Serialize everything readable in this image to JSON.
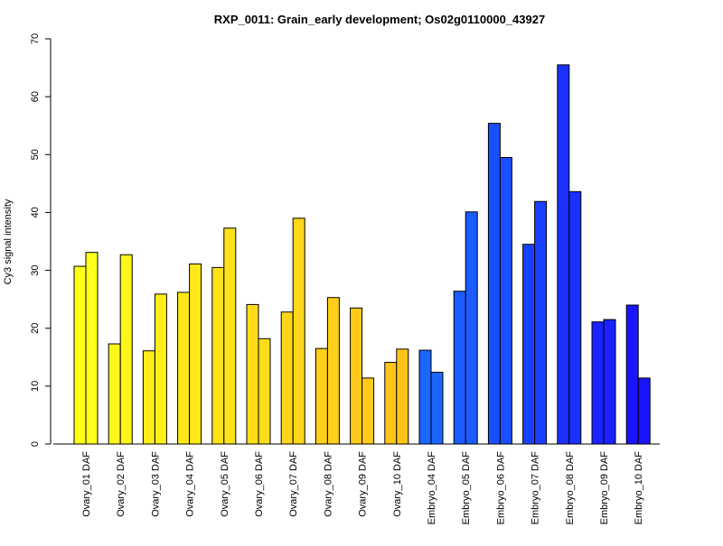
{
  "chart_data": {
    "type": "bar",
    "title": "RXP_0011: Grain_early development; Os02g0110000_43927",
    "xlabel": "",
    "ylabel": "Cy3 signal intensity",
    "ylim": [
      0,
      70
    ],
    "yticks": [
      "0",
      "10",
      "20",
      "30",
      "40",
      "50",
      "60",
      "70"
    ],
    "grid": false,
    "legend": "none",
    "categories": [
      "Ovary_01 DAF",
      "Ovary_02 DAF",
      "Ovary_03 DAF",
      "Ovary_04 DAF",
      "Ovary_05 DAF",
      "Ovary_06 DAF",
      "Ovary_07 DAF",
      "Ovary_08 DAF",
      "Ovary_09 DAF",
      "Ovary_10 DAF",
      "Embryo_04 DAF",
      "Embryo_05 DAF",
      "Embryo_06 DAF",
      "Embryo_07 DAF",
      "Embryo_08 DAF",
      "Embryo_09 DAF",
      "Embryo_10 DAF"
    ],
    "series": [
      {
        "values": [
          30.7,
          17.3,
          16.1,
          26.2,
          30.5,
          24.1,
          22.8,
          16.5,
          23.5,
          14.1,
          16.2,
          26.4,
          55.4,
          34.5,
          65.5,
          21.1,
          24.0
        ]
      },
      {
        "values": [
          33.1,
          32.7,
          25.9,
          31.1,
          37.3,
          18.2,
          39.0,
          25.3,
          11.4,
          16.4,
          12.4,
          40.1,
          49.5,
          41.9,
          43.6,
          21.5,
          11.4
        ]
      }
    ],
    "colors": [
      "#FFFF1A",
      "#FFF51A",
      "#FFEE1A",
      "#FFE81A",
      "#FFE21A",
      "#FFDC1A",
      "#FFD61A",
      "#FFD01A",
      "#FFCA1A",
      "#FFC41A",
      "#1A66FF",
      "#1A5CFF",
      "#1A4FFF",
      "#1A40FF",
      "#1A30FF",
      "#1A22FF",
      "#1A14FF"
    ]
  }
}
